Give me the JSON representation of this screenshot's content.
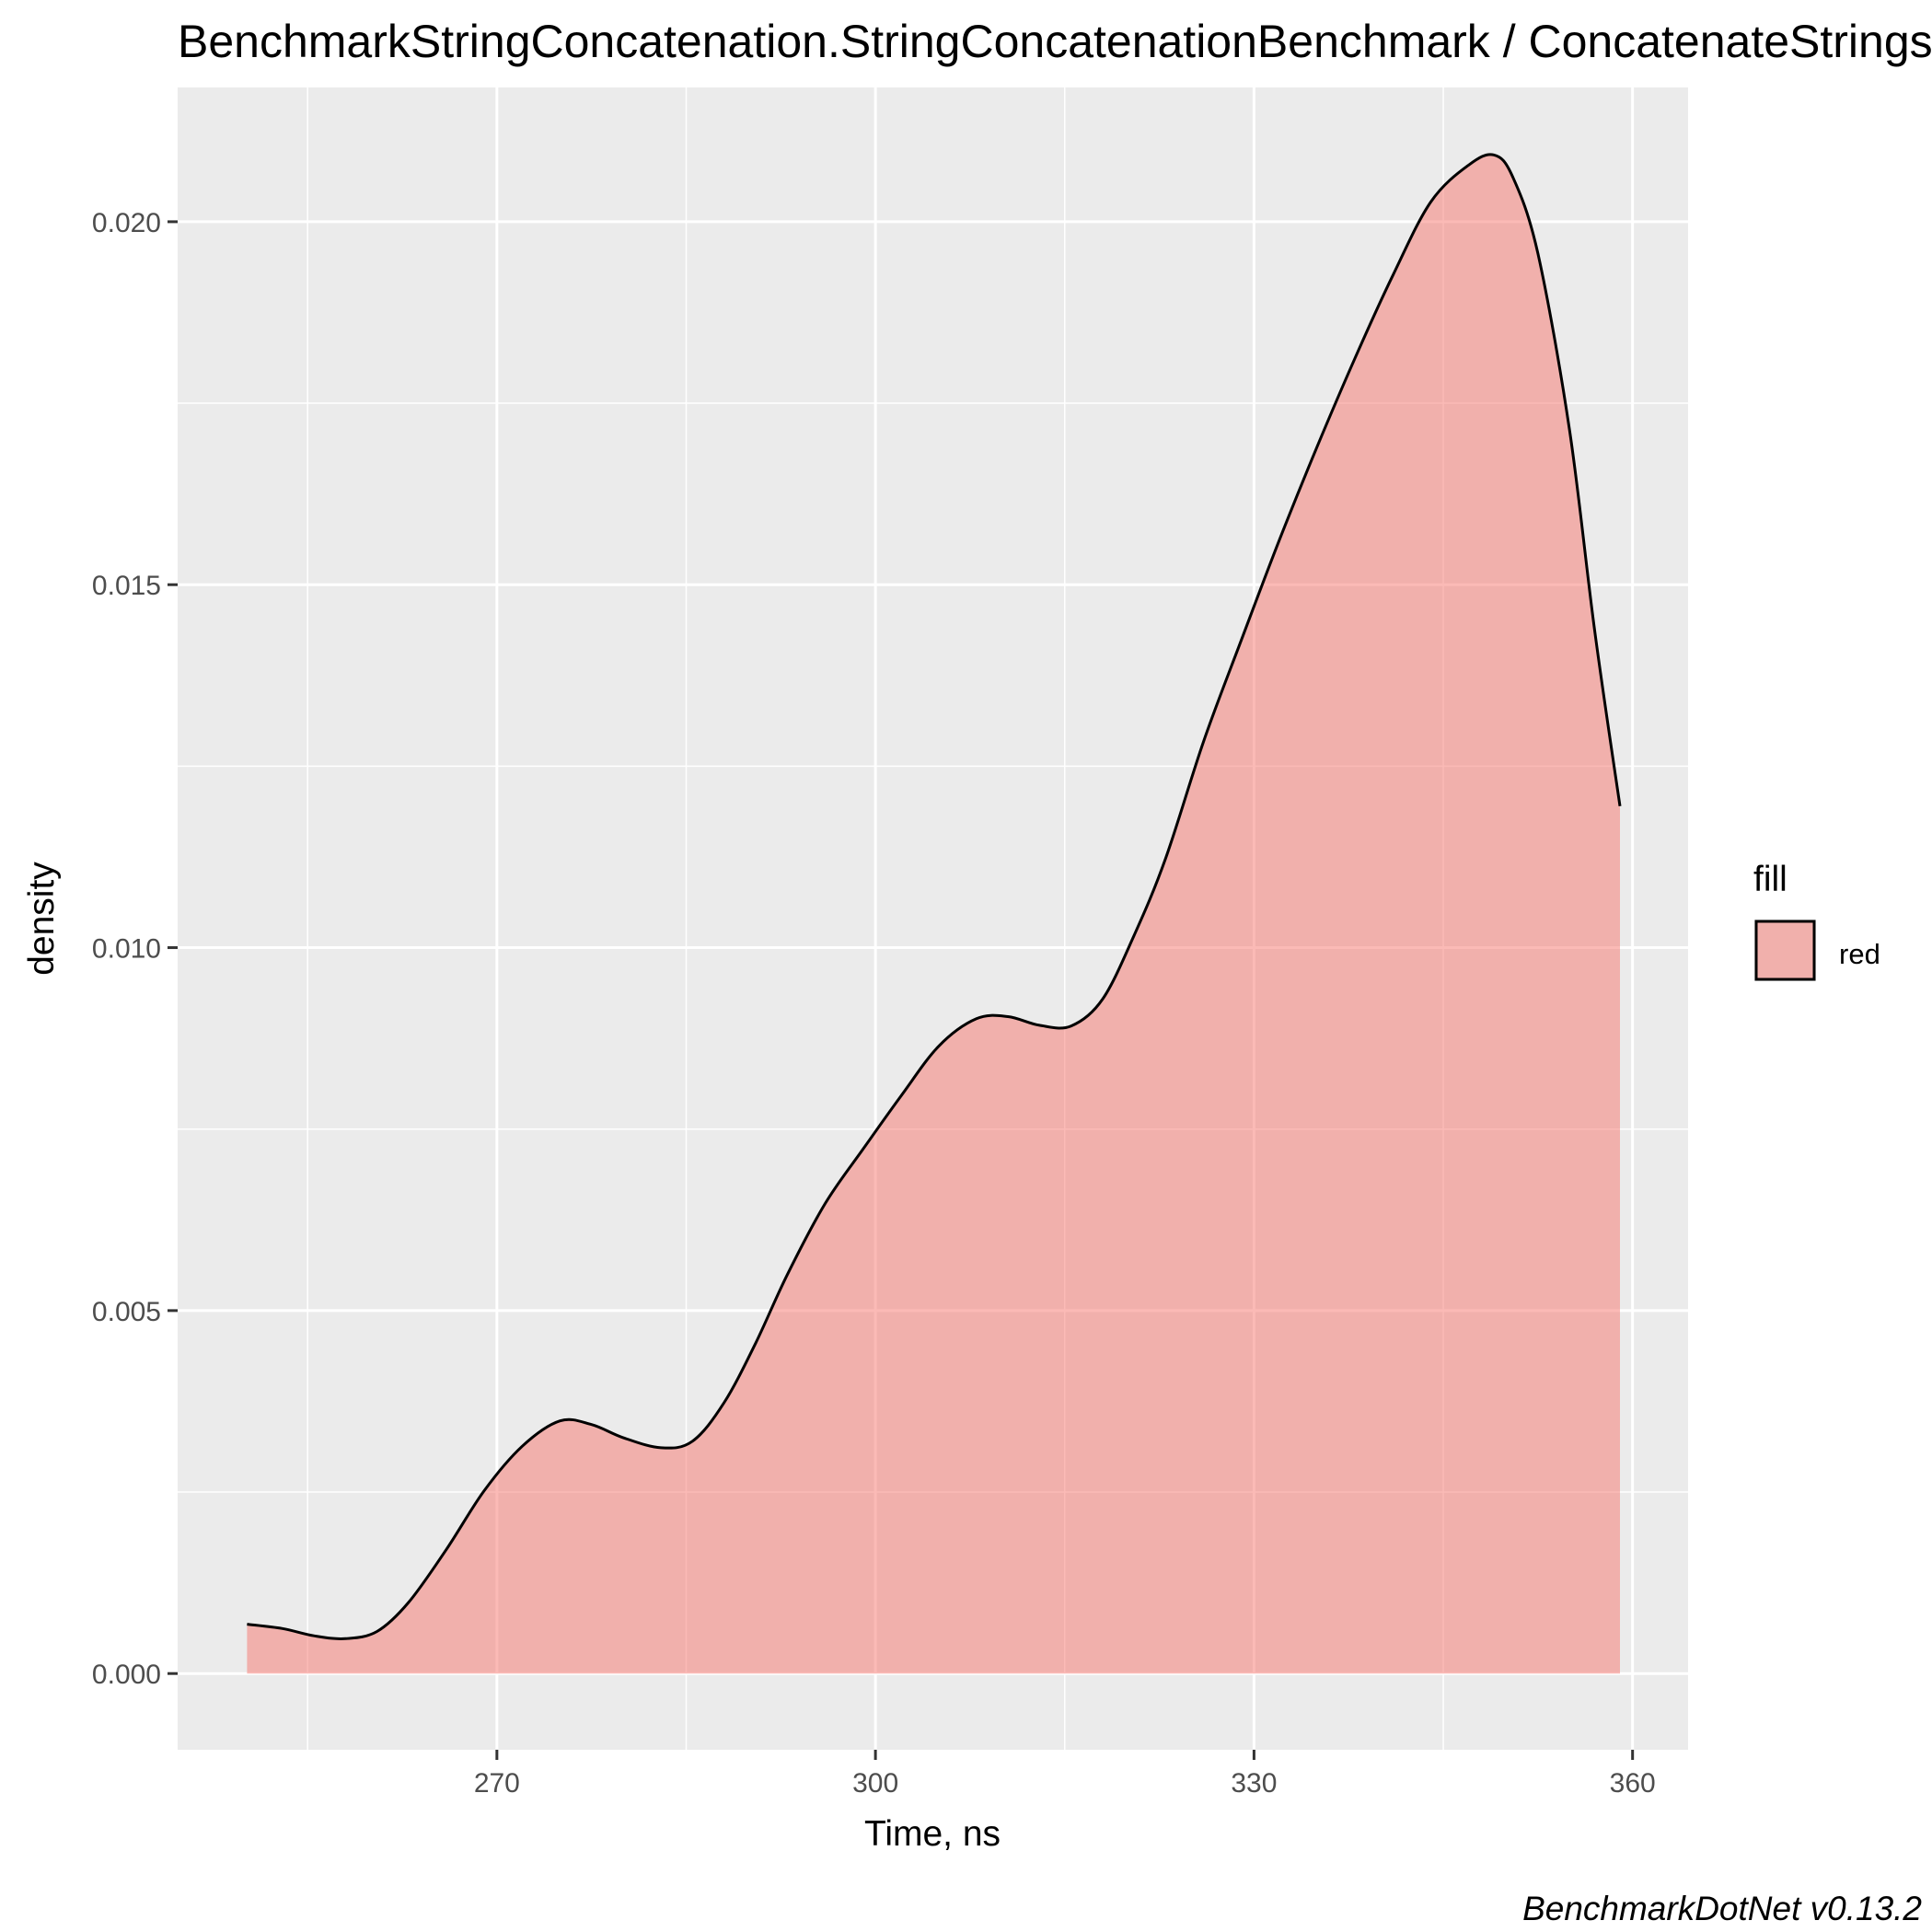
{
  "chart_data": {
    "type": "area",
    "title": "BenchmarkStringConcatenation.StringConcatenationBenchmark / ConcatenateStringsUsingGenericListAndStringJoin: Job-NOLMJR",
    "xlabel": "Time, ns",
    "ylabel": "density",
    "caption": "BenchmarkDotNet v0.13.2",
    "xlim": [
      244.7,
      364.4
    ],
    "ylim": [
      -0.00105,
      0.02185
    ],
    "x_ticks": [
      270,
      300,
      330,
      360
    ],
    "x_tick_labels": [
      "270",
      "300",
      "330",
      "360"
    ],
    "y_ticks": [
      0,
      0.005,
      0.01,
      0.015,
      0.02
    ],
    "y_tick_labels": [
      "0.000",
      "0.005",
      "0.010",
      "0.015",
      "0.020"
    ],
    "grid": true,
    "legend": {
      "title": "fill",
      "entries": [
        "red"
      ],
      "position": "right"
    },
    "colors": {
      "panel_background": "#ebebeb",
      "grid": "#ffffff",
      "fill": "#f8766d",
      "fill_alpha": 0.5,
      "outline": "#000000"
    },
    "series": [
      {
        "x": [
          250.2,
          253.0,
          255.5,
          258.0,
          260.5,
          263.0,
          266.0,
          269.0,
          272.0,
          275.0,
          277.5,
          280.0,
          283.0,
          285.5,
          288.0,
          290.5,
          293.0,
          296.0,
          299.0,
          302.0,
          305.0,
          308.0,
          310.5,
          313.0,
          315.5,
          318.0,
          320.5,
          323.0,
          326.0,
          329.0,
          332.0,
          335.0,
          338.0,
          341.0,
          344.0,
          347.0,
          349.0,
          350.5,
          352.5,
          355.0,
          357.0,
          359.0
        ],
        "y": [
          0.00068,
          0.00062,
          0.00052,
          0.00048,
          0.00058,
          0.00098,
          0.00171,
          0.00252,
          0.00313,
          0.00348,
          0.00343,
          0.00325,
          0.00311,
          0.0032,
          0.00373,
          0.00455,
          0.00549,
          0.00647,
          0.00722,
          0.00795,
          0.00864,
          0.00902,
          0.00905,
          0.00893,
          0.00892,
          0.00929,
          0.01017,
          0.01123,
          0.01284,
          0.01424,
          0.01561,
          0.0169,
          0.01812,
          0.01926,
          0.02027,
          0.02078,
          0.02092,
          0.02062,
          0.01956,
          0.01714,
          0.01436,
          0.01195
        ]
      }
    ]
  }
}
